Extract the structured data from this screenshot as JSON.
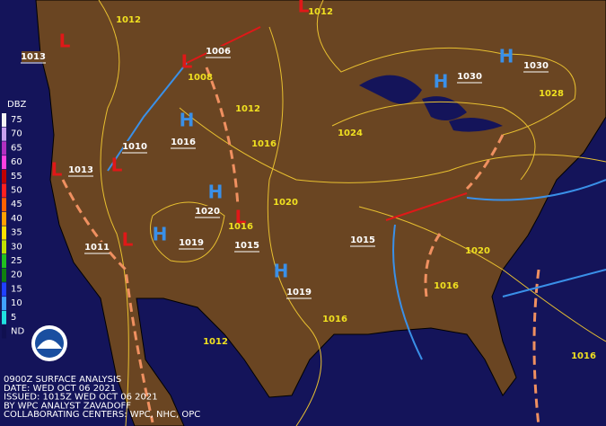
{
  "map": {
    "legend": {
      "title": "DBZ",
      "levels": [
        {
          "label": "75",
          "color": "#f4f4f4"
        },
        {
          "label": "70",
          "color": "#c8a0f0"
        },
        {
          "label": "65",
          "color": "#b030c0"
        },
        {
          "label": "60",
          "color": "#ff40e0"
        },
        {
          "label": "55",
          "color": "#c00000"
        },
        {
          "label": "50",
          "color": "#ff2020"
        },
        {
          "label": "45",
          "color": "#ff6000"
        },
        {
          "label": "40",
          "color": "#ffa000"
        },
        {
          "label": "35",
          "color": "#ffe000"
        },
        {
          "label": "30",
          "color": "#c0e000"
        },
        {
          "label": "25",
          "color": "#20c020"
        },
        {
          "label": "20",
          "color": "#108010"
        },
        {
          "label": "15",
          "color": "#2040ff"
        },
        {
          "label": "10",
          "color": "#40a0ff"
        },
        {
          "label": "5",
          "color": "#20e0e0"
        },
        {
          "label": "ND",
          "color": "#101050"
        }
      ]
    },
    "highs": [
      "H",
      "H",
      "H",
      "H",
      "H",
      "H"
    ],
    "lows": [
      "L",
      "L",
      "L",
      "L",
      "L",
      "L",
      "L"
    ],
    "pressure_centers": [
      "1013",
      "1006",
      "1016",
      "1010",
      "1013",
      "1020",
      "1011",
      "1019",
      "1015",
      "1015",
      "1019",
      "1030",
      "1030"
    ],
    "isobar_labels": [
      "1012",
      "1012",
      "1008",
      "1012",
      "1016",
      "1024",
      "1028",
      "1020",
      "1016",
      "1020",
      "1016",
      "1016",
      "1012",
      "1016"
    ],
    "footer": [
      "0900Z SURFACE ANALYSIS",
      "DATE: WED OCT 06 2021",
      "ISSUED: 1015Z WED OCT 06 2021",
      "BY WPC ANALYST ZAVADOFF",
      "COLLABORATING CENTERS: WPC, NHC, OPC"
    ]
  }
}
